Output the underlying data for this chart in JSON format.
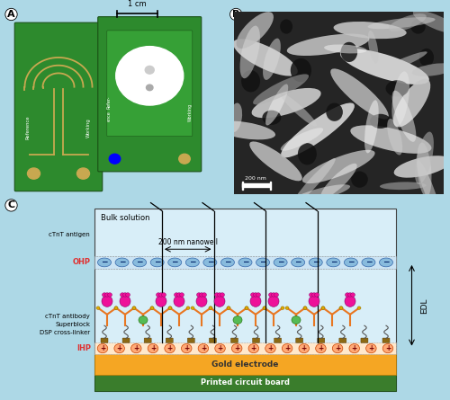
{
  "bg_color": "#add8e6",
  "panel_A_label": "A",
  "panel_B_label": "B",
  "panel_C_label": "C",
  "scale_bar_text": "1 cm",
  "scale_bar_text_B": "200 nm",
  "panel_C_nanowell_label": "200 nm nanowell",
  "panel_C_gold_label": "Gold electrode",
  "panel_C_pcb_label": "Printed circuit board",
  "bulk_solution_label": "Bulk solution",
  "ohp_label": "OHP",
  "ctnt_antigen_label": "cTnT antigen",
  "ctnt_antibody_label": "cTnT antibody",
  "superblock_label": "Superblock",
  "dsp_label": "DSP cross-linker",
  "ihp_label": "IHP",
  "edl_label": "EDL",
  "ohp_color": "#e03030",
  "ihp_color": "#e03030",
  "gold_color": "#f5a623",
  "pcb_color": "#3a7d2c",
  "blue_oval_color": "#88bbdd",
  "antigen_color": "#ee1199",
  "antibody_color": "#e87722",
  "superblock_color": "#55bb55",
  "dsp_base_color": "#8B6914",
  "pos_fill": "#ffaa77",
  "pos_edge": "#cc4400",
  "neg_fill": "#88bbdd",
  "neg_edge": "#3366aa",
  "diagram_bg": "#d8eef8",
  "diagram_edge": "#444444"
}
